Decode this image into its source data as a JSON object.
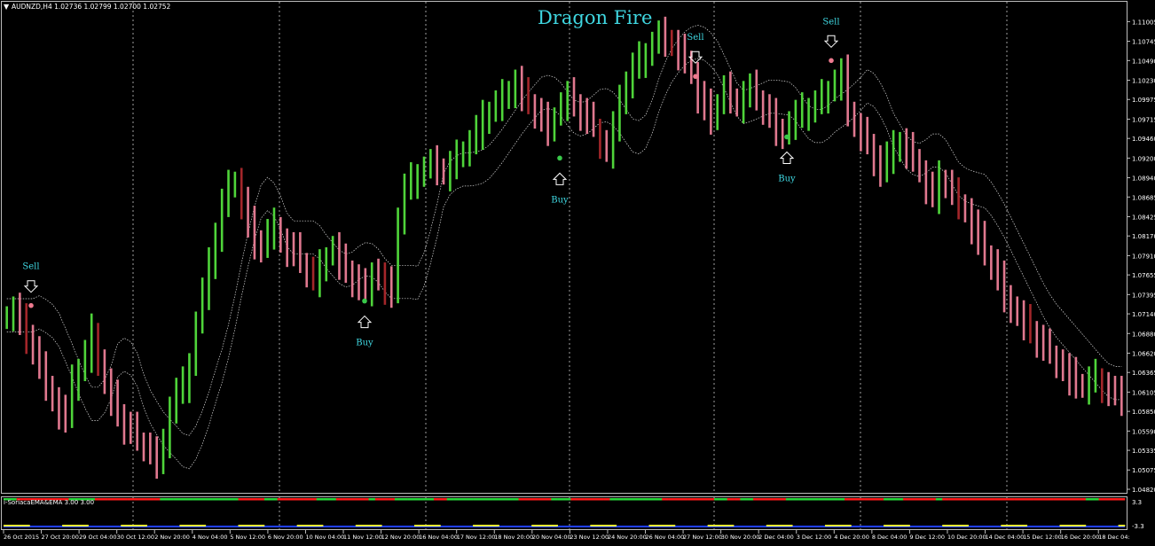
{
  "window": {
    "symbol_header": "AUDNZD,H4  1.02736 1.02799 1.02700 1.02752",
    "menu_arrow": "▼"
  },
  "indicator": {
    "title": "Dragon Fire",
    "signals": [
      {
        "type": "Sell",
        "time": "27 Oct 2015 04:00",
        "price": 1.0725
      },
      {
        "type": "Buy",
        "time": "11 Nov 2015 08:00",
        "price": 1.0731
      },
      {
        "type": "Buy",
        "time": "20 Nov 2015 04:00",
        "price": 1.092
      },
      {
        "type": "Sell",
        "time": "30 Nov 2015 04:00",
        "price": 1.1028
      },
      {
        "type": "Buy",
        "time": "2 Dec 2015 04:00",
        "price": 1.0948
      },
      {
        "type": "Sell",
        "time": "3 Dec 2015 04:00",
        "price": 1.1049
      }
    ]
  },
  "sub_window": {
    "label": "i-SoriacaEMA&EMA  3.00 3.00",
    "scale": [
      "3.3",
      "-3.3"
    ],
    "colors": {
      "up": "#27d63a",
      "down": "#ff1a1a",
      "neutral": "#ffff33",
      "base": "#2040ff"
    }
  },
  "colors": {
    "bull_bar": "#4fd43a",
    "bear_bar": "#e0788f",
    "dark_bear": "#a3262a",
    "dot_buy": "#39c94a",
    "dot_sell": "#ee7a8f",
    "signal_text": "#3fd6e0",
    "grid": "#c8c8c8",
    "background": "#000000"
  },
  "chart_data": {
    "type": "bar",
    "title": "Dragon Fire",
    "symbol": "AUDNZD",
    "timeframe": "H4",
    "ohlc": {
      "open": 1.02736,
      "high": 1.02799,
      "low": 1.027,
      "close": 1.02752
    },
    "price_ticks": [
      "1.11005",
      "1.10745",
      "1.10490",
      "1.10230",
      "1.09975",
      "1.09715",
      "1.09460",
      "1.09200",
      "1.08940",
      "1.08685",
      "1.08425",
      "1.08170",
      "1.07910",
      "1.07655",
      "1.07395",
      "1.07140",
      "1.06880",
      "1.06620",
      "1.06365",
      "1.06105",
      "1.05850",
      "1.05590",
      "1.05335",
      "1.05075",
      "1.04820"
    ],
    "time_ticks": [
      "26 Oct 2015",
      "27 Oct 20:00",
      "29 Oct 04:00",
      "30 Oct 12:00",
      "2 Nov 20:00",
      "4 Nov 04:00",
      "5 Nov 12:00",
      "6 Nov 20:00",
      "10 Nov 04:00",
      "11 Nov 12:00",
      "12 Nov 20:00",
      "16 Nov 04:00",
      "17 Nov 12:00",
      "18 Nov 20:00",
      "20 Nov 04:00",
      "23 Nov 12:00",
      "24 Nov 20:00",
      "26 Nov 04:00",
      "27 Nov 12:00",
      "30 Nov 20:00",
      "2 Dec 04:00",
      "3 Dec 12:00",
      "4 Dec 20:00",
      "8 Dec 04:00",
      "9 Dec 12:00",
      "10 Dec 20:00",
      "14 Dec 04:00",
      "15 Dec 12:00",
      "16 Dec 20:00",
      "18 Dec 04:"
    ],
    "ylim": [
      1.0482,
      1.1115
    ],
    "grid": "vertical dotted lines at day separators",
    "series": [
      {
        "kind": "price_bars",
        "close": [
          1.0712,
          1.072,
          1.0701,
          1.0685,
          1.0665,
          1.064,
          1.062,
          1.06,
          1.0585,
          1.0575,
          1.062,
          1.064,
          1.066,
          1.069,
          1.065,
          1.062,
          1.06,
          1.058,
          1.0565,
          1.056,
          1.0545,
          1.054,
          1.053,
          1.052,
          1.0535,
          1.059,
          1.061,
          1.062,
          1.065,
          1.07,
          1.074,
          1.0775,
          1.082,
          1.086,
          1.088,
          1.089,
          1.086,
          1.083,
          1.081,
          1.08,
          1.082,
          1.083,
          1.081,
          1.08,
          1.0795,
          1.078,
          1.077,
          1.076,
          1.0775,
          1.079,
          1.08,
          1.078,
          1.077,
          1.076,
          1.075,
          1.0745,
          1.077,
          1.076,
          1.075,
          1.074,
          1.084,
          1.088,
          1.089,
          1.09,
          1.0905,
          1.091,
          1.0905,
          1.09,
          1.091,
          1.092,
          1.093,
          1.094,
          1.0955,
          1.097,
          1.098,
          1.099,
          1.1,
          1.101,
          1.102,
          1.1,
          1.099,
          1.098,
          1.097,
          1.096,
          1.0975,
          1.099,
          1.1,
          1.099,
          1.098,
          1.097,
          1.096,
          1.094,
          1.093,
          1.096,
          1.099,
          1.102,
          1.104,
          1.105,
          1.106,
          1.107,
          1.108,
          1.1075,
          1.107,
          1.106,
          1.105,
          1.103,
          1.1,
          1.0985,
          1.0975,
          1.099,
          1.101,
          1.1,
          1.099,
          1.1005,
          1.101,
          1.0995,
          1.0985,
          1.0975,
          1.096,
          1.095,
          1.0965,
          1.0975,
          1.098,
          1.0985,
          1.099,
          1.1,
          1.101,
          1.102,
          1.103,
          1.098,
          1.096,
          1.095,
          1.094,
          1.092,
          1.09,
          1.092,
          1.093,
          1.094,
          1.093,
          1.092,
          1.09,
          1.088,
          1.087,
          1.089,
          1.0885,
          1.087,
          1.086,
          1.085,
          1.083,
          1.081,
          1.079,
          1.078,
          1.076,
          1.074,
          1.072,
          1.071,
          1.07,
          1.069,
          1.068,
          1.067,
          1.066,
          1.065,
          1.064,
          1.063,
          1.062,
          1.0615,
          1.0625,
          1.063,
          1.062,
          1.061,
          1.0605,
          1.06
        ]
      }
    ]
  }
}
